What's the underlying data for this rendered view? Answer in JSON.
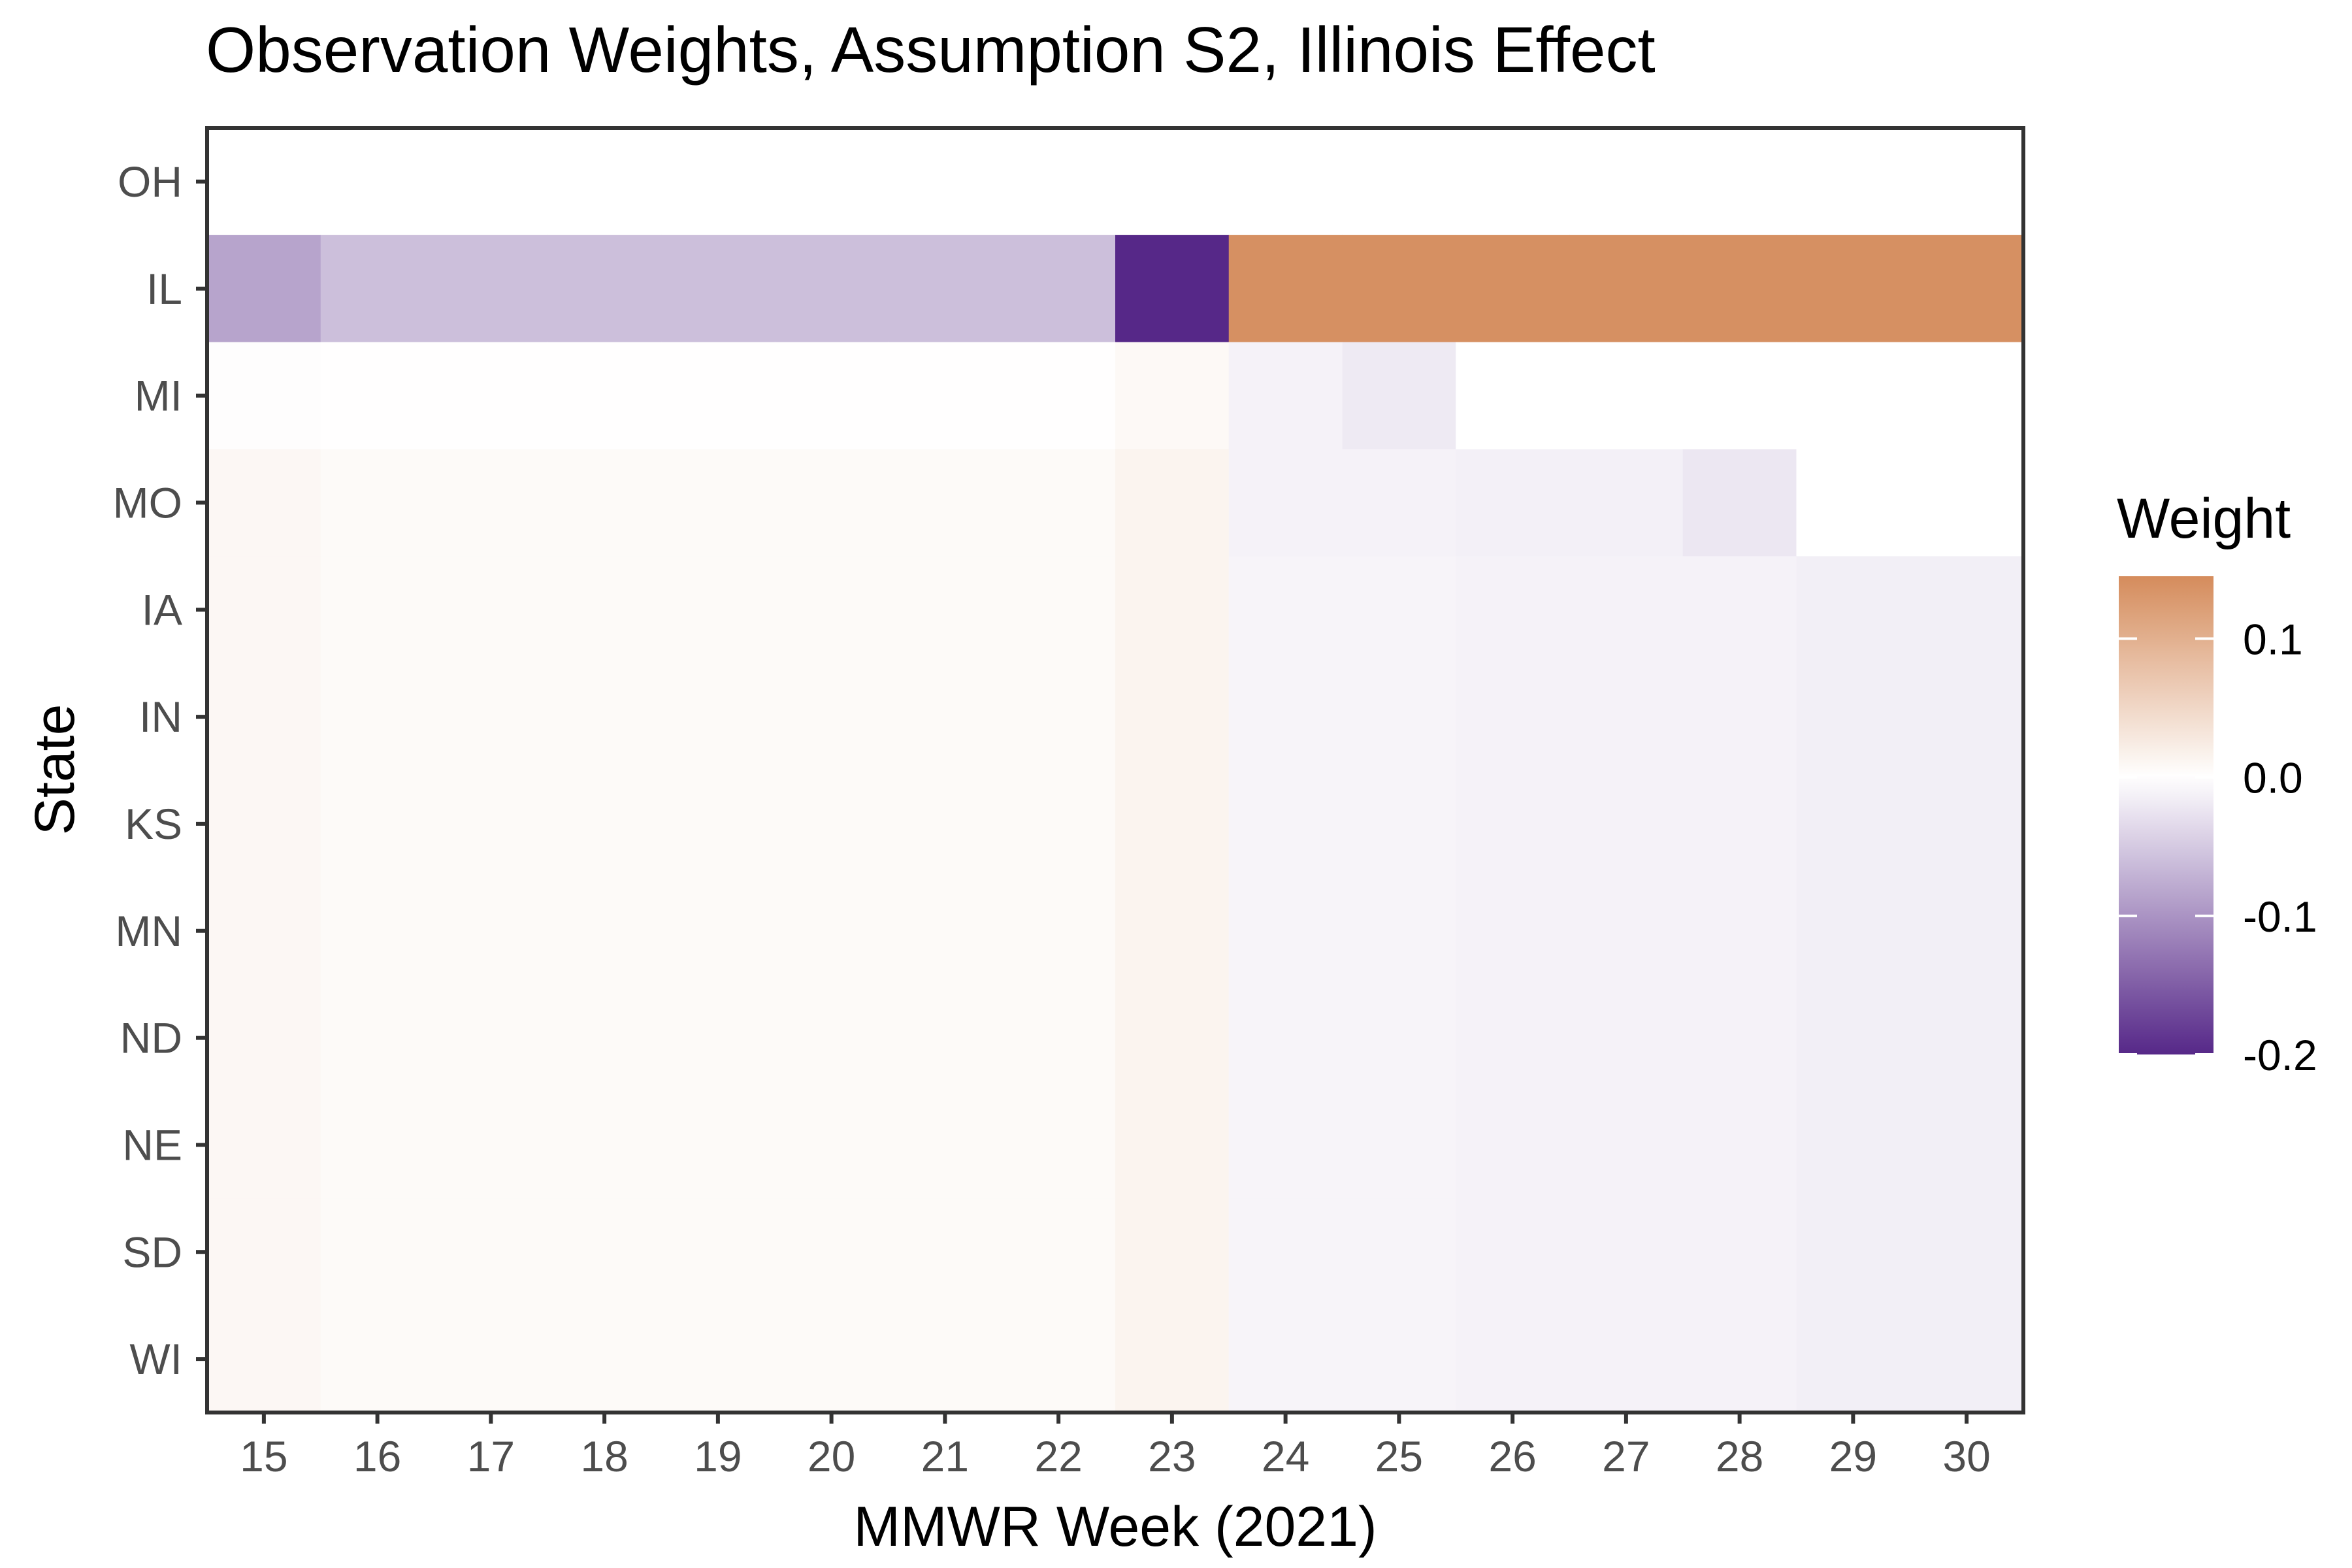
{
  "chart_data": {
    "type": "heatmap",
    "title": "Observation Weights, Assumption S2, Illinois Effect",
    "xlabel": "MMWR Week (2021)",
    "ylabel": "State",
    "x": [
      15,
      16,
      17,
      18,
      19,
      20,
      21,
      22,
      23,
      24,
      25,
      26,
      27,
      28,
      29,
      30
    ],
    "y": [
      "OH",
      "IL",
      "MI",
      "MO",
      "IA",
      "IN",
      "KS",
      "MN",
      "ND",
      "NE",
      "SD",
      "WI"
    ],
    "values": [
      [
        0,
        0,
        0,
        0,
        0,
        0,
        0,
        0,
        0,
        0,
        0,
        0,
        0,
        0,
        0,
        0
      ],
      [
        -0.085,
        -0.06,
        -0.06,
        -0.06,
        -0.06,
        -0.06,
        -0.06,
        -0.06,
        -0.2,
        0.14,
        0.14,
        0.14,
        0.14,
        0.14,
        0.14,
        0.14
      ],
      [
        0.002,
        0.001,
        0.001,
        0.001,
        0.001,
        0.001,
        0.001,
        0.001,
        0.008,
        -0.012,
        -0.02,
        0,
        0,
        0,
        0,
        0
      ],
      [
        0.01,
        0.006,
        0.006,
        0.006,
        0.006,
        0.006,
        0.006,
        0.006,
        0.014,
        -0.012,
        -0.012,
        -0.014,
        -0.014,
        -0.022,
        0,
        0
      ],
      [
        0.01,
        0.006,
        0.006,
        0.006,
        0.006,
        0.006,
        0.006,
        0.006,
        0.014,
        -0.01,
        -0.01,
        -0.012,
        -0.012,
        -0.012,
        -0.015,
        -0.015
      ],
      [
        0.01,
        0.006,
        0.006,
        0.006,
        0.006,
        0.006,
        0.006,
        0.006,
        0.014,
        -0.01,
        -0.01,
        -0.012,
        -0.012,
        -0.012,
        -0.015,
        -0.015
      ],
      [
        0.01,
        0.006,
        0.006,
        0.006,
        0.006,
        0.006,
        0.006,
        0.006,
        0.014,
        -0.01,
        -0.01,
        -0.012,
        -0.012,
        -0.012,
        -0.015,
        -0.015
      ],
      [
        0.01,
        0.006,
        0.006,
        0.006,
        0.006,
        0.006,
        0.006,
        0.006,
        0.014,
        -0.01,
        -0.01,
        -0.012,
        -0.012,
        -0.012,
        -0.015,
        -0.015
      ],
      [
        0.01,
        0.006,
        0.006,
        0.006,
        0.006,
        0.006,
        0.006,
        0.006,
        0.014,
        -0.01,
        -0.01,
        -0.012,
        -0.012,
        -0.012,
        -0.015,
        -0.015
      ],
      [
        0.01,
        0.006,
        0.006,
        0.006,
        0.006,
        0.006,
        0.006,
        0.006,
        0.014,
        -0.01,
        -0.01,
        -0.012,
        -0.012,
        -0.012,
        -0.015,
        -0.015
      ],
      [
        0.01,
        0.006,
        0.006,
        0.006,
        0.006,
        0.006,
        0.006,
        0.006,
        0.014,
        -0.01,
        -0.01,
        -0.012,
        -0.012,
        -0.012,
        -0.015,
        -0.015
      ],
      [
        0.01,
        0.006,
        0.006,
        0.006,
        0.006,
        0.006,
        0.006,
        0.006,
        0.014,
        -0.01,
        -0.01,
        -0.012,
        -0.012,
        -0.012,
        -0.015,
        -0.015
      ]
    ],
    "legend": {
      "title": "Weight",
      "ticks": [
        "0.1",
        "0.0",
        "-0.1",
        "-0.2"
      ],
      "tick_values": [
        0.1,
        0.0,
        -0.1,
        -0.2
      ],
      "range": [
        -0.2,
        0.145
      ],
      "placement": "right"
    },
    "colors": {
      "high": "#d58c5c",
      "mid": "#ffffff",
      "low": "#562888",
      "panel_border": "#333333",
      "tick_label": "#4d4d4d",
      "text": "#000000"
    },
    "grid": false
  }
}
